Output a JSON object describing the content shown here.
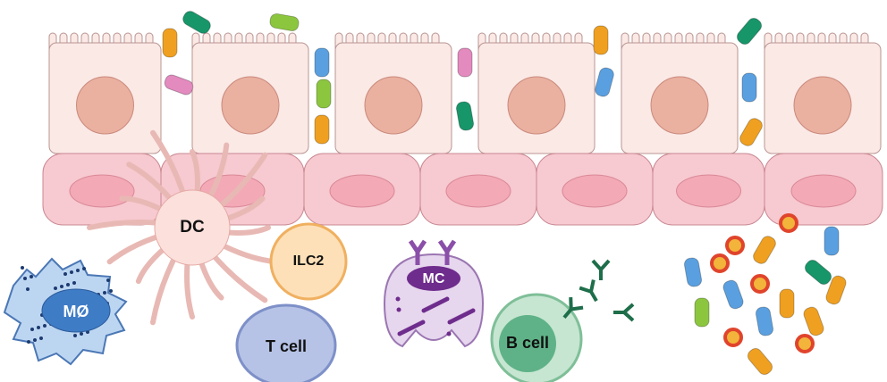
{
  "nodes": [
    {
      "label": "DC"
    },
    {
      "label": "ILC2"
    },
    {
      "label": "MØ"
    },
    {
      "label": "T cell"
    },
    {
      "label": "MC"
    },
    {
      "label": "B cell"
    }
  ]
}
